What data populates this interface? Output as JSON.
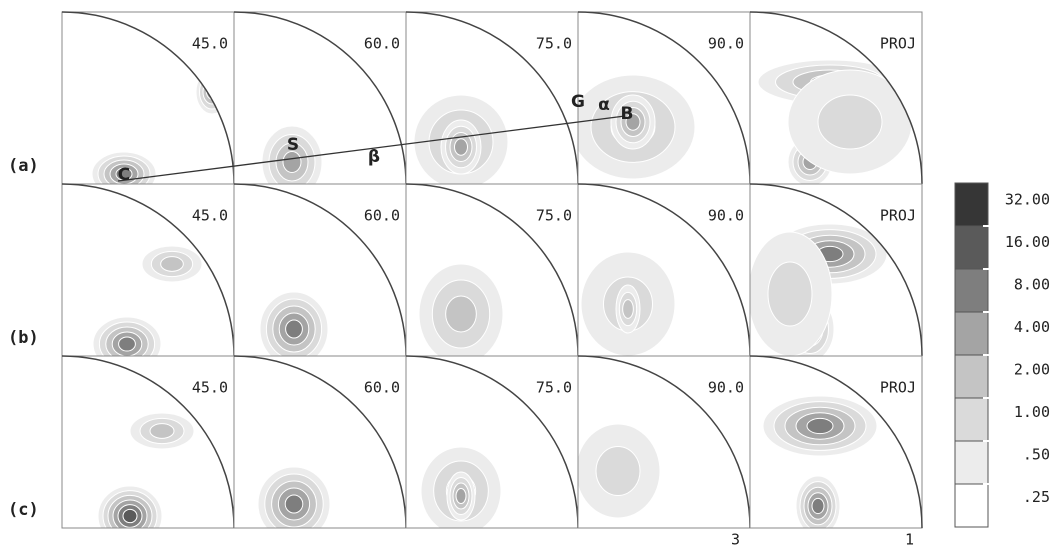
{
  "rows": [
    {
      "label": "(a)",
      "panels": [
        "45.0",
        "60.0",
        "75.0",
        "90.0",
        "PROJ"
      ]
    },
    {
      "label": "(b)",
      "panels": [
        "45.0",
        "60.0",
        "75.0",
        "90.0",
        "PROJ"
      ]
    },
    {
      "label": "(c)",
      "panels": [
        "45.0",
        "60.0",
        "75.0",
        "90.0",
        "PROJ"
      ]
    }
  ],
  "annotations": [
    "C",
    "S",
    "β",
    "G",
    "α",
    "B"
  ],
  "legend": [
    "32.00",
    "16.00",
    "8.00",
    "4.00",
    "2.00",
    "1.00",
    ".50",
    ".25"
  ],
  "axis_labels": [
    "3",
    "1"
  ]
}
